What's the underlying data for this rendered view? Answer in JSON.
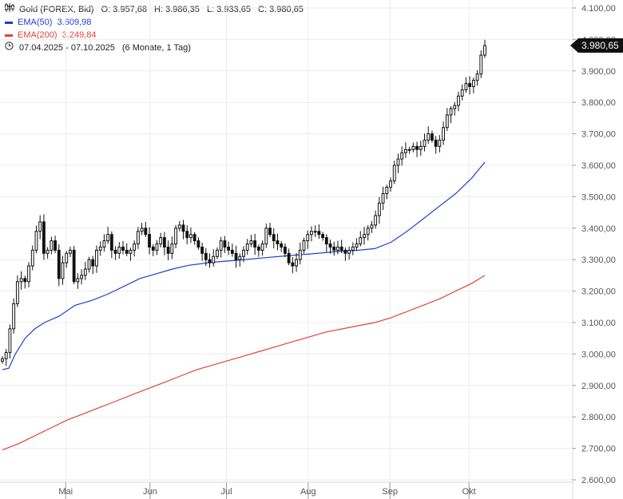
{
  "legend": {
    "instrument": "Gold (FOREX, Bid)",
    "ohlc": {
      "o_label": "O:",
      "o": "3.957,68",
      "h_label": "H:",
      "h": "3.986,35",
      "l_label": "L:",
      "l": "3.933,65",
      "c_label": "C:",
      "c": "3.980,65"
    },
    "ema50": {
      "label": "EMA(50)",
      "value": "3.609,98",
      "color": "#1f3fd6"
    },
    "ema200": {
      "label": "EMA(200)",
      "value": "3.249,84",
      "color": "#e0453a"
    },
    "range": {
      "dates": "07.04.2025 - 07.10.2025",
      "interval": "(6 Monate, 1 Tag)"
    }
  },
  "last_price_label": "3.980,65",
  "chart_data": {
    "type": "candlestick",
    "y_axis": {
      "min": 2600,
      "max": 4100,
      "position": "right",
      "grid": true,
      "ticks": [
        2600,
        2700,
        2800,
        2900,
        3000,
        3100,
        3200,
        3300,
        3400,
        3500,
        3600,
        3700,
        3800,
        3900,
        4000,
        4100
      ],
      "tick_labels": [
        "2.600,00",
        "2.700,00",
        "2.800,00",
        "2.900,00",
        "3.000,00",
        "3.100,00",
        "3.200,00",
        "3.300,00",
        "3.400,00",
        "3.500,00",
        "3.600,00",
        "3.700,00",
        "3.800,00",
        "3.900,00",
        "4.000,00",
        "4.100,00"
      ]
    },
    "x_axis": {
      "start": "2025-04-07",
      "end": "2025-10-07",
      "grid": true,
      "months": [
        {
          "label": "Mai",
          "date": "2025-05-01"
        },
        {
          "label": "Jun",
          "date": "2025-06-02"
        },
        {
          "label": "Jul",
          "date": "2025-07-01"
        },
        {
          "label": "Aug",
          "date": "2025-08-01"
        },
        {
          "label": "Sep",
          "date": "2025-09-01"
        },
        {
          "label": "Okt",
          "date": "2025-10-01"
        }
      ]
    },
    "candle_closes": [
      2985,
      3005,
      3080,
      3160,
      3230,
      3240,
      3230,
      3280,
      3330,
      3390,
      3420,
      3320,
      3330,
      3360,
      3330,
      3240,
      3290,
      3320,
      3330,
      3230,
      3240,
      3250,
      3270,
      3300,
      3280,
      3330,
      3340,
      3360,
      3380,
      3330,
      3320,
      3340,
      3330,
      3320,
      3330,
      3350,
      3390,
      3400,
      3380,
      3340,
      3330,
      3350,
      3370,
      3340,
      3320,
      3350,
      3400,
      3410,
      3390,
      3370,
      3380,
      3360,
      3340,
      3320,
      3300,
      3290,
      3310,
      3330,
      3360,
      3340,
      3330,
      3320,
      3300,
      3310,
      3330,
      3350,
      3360,
      3340,
      3330,
      3350,
      3400,
      3380,
      3360,
      3350,
      3340,
      3320,
      3290,
      3280,
      3300,
      3330,
      3360,
      3380,
      3390,
      3390,
      3380,
      3370,
      3350,
      3340,
      3330,
      3340,
      3330,
      3320,
      3330,
      3340,
      3350,
      3370,
      3380,
      3400,
      3410,
      3440,
      3480,
      3510,
      3530,
      3550,
      3600,
      3620,
      3640,
      3650,
      3650,
      3660,
      3650,
      3660,
      3680,
      3700,
      3680,
      3660,
      3680,
      3720,
      3760,
      3780,
      3790,
      3820,
      3840,
      3860,
      3850,
      3870,
      3890,
      3950,
      3980.65
    ],
    "series": [
      {
        "name": "EMA(50)",
        "color": "#1f3fd6",
        "last": 3609.98,
        "points": [
          [
            0,
            2950
          ],
          [
            8,
            2955
          ],
          [
            16,
            3000
          ],
          [
            28,
            3050
          ],
          [
            40,
            3080
          ],
          [
            52,
            3100
          ],
          [
            70,
            3120
          ],
          [
            90,
            3155
          ],
          [
            110,
            3170
          ],
          [
            130,
            3190
          ],
          [
            150,
            3215
          ],
          [
            170,
            3240
          ],
          [
            190,
            3255
          ],
          [
            210,
            3270
          ],
          [
            230,
            3282
          ],
          [
            260,
            3292
          ],
          [
            290,
            3298
          ],
          [
            320,
            3305
          ],
          [
            350,
            3312
          ],
          [
            380,
            3318
          ],
          [
            410,
            3325
          ],
          [
            440,
            3330
          ],
          [
            460,
            3335
          ],
          [
            480,
            3355
          ],
          [
            500,
            3390
          ],
          [
            520,
            3430
          ],
          [
            540,
            3470
          ],
          [
            560,
            3510
          ],
          [
            580,
            3560
          ],
          [
            596,
            3609.98
          ]
        ]
      },
      {
        "name": "EMA(200)",
        "color": "#e0453a",
        "last": 3249.84,
        "points": [
          [
            0,
            2695
          ],
          [
            20,
            2715
          ],
          [
            40,
            2740
          ],
          [
            60,
            2765
          ],
          [
            80,
            2790
          ],
          [
            100,
            2810
          ],
          [
            120,
            2830
          ],
          [
            140,
            2850
          ],
          [
            160,
            2870
          ],
          [
            180,
            2890
          ],
          [
            200,
            2910
          ],
          [
            220,
            2930
          ],
          [
            240,
            2950
          ],
          [
            260,
            2965
          ],
          [
            280,
            2980
          ],
          [
            300,
            2995
          ],
          [
            320,
            3010
          ],
          [
            340,
            3025
          ],
          [
            360,
            3040
          ],
          [
            380,
            3055
          ],
          [
            400,
            3070
          ],
          [
            420,
            3080
          ],
          [
            440,
            3090
          ],
          [
            460,
            3100
          ],
          [
            480,
            3115
          ],
          [
            500,
            3135
          ],
          [
            520,
            3155
          ],
          [
            540,
            3175
          ],
          [
            560,
            3200
          ],
          [
            580,
            3225
          ],
          [
            596,
            3249.84
          ]
        ]
      }
    ]
  }
}
